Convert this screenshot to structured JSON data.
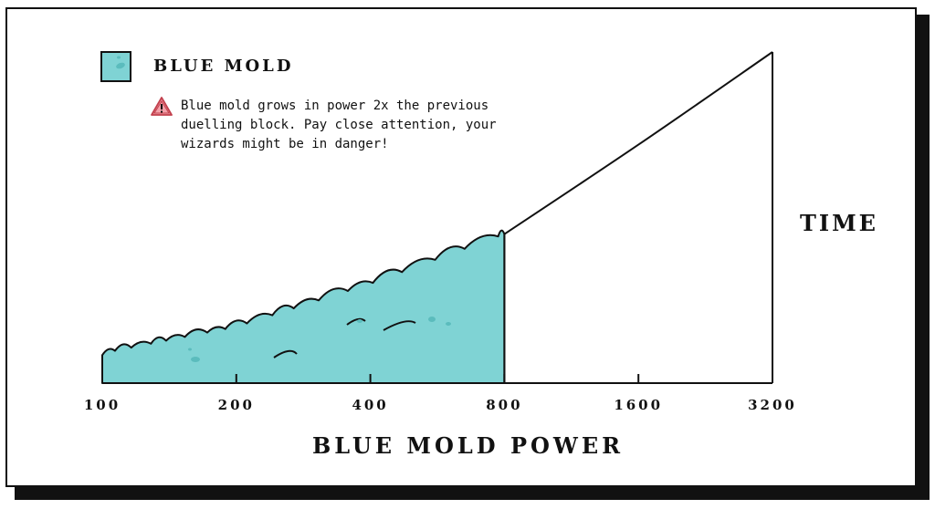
{
  "chart_data": {
    "type": "area",
    "title": "",
    "xlabel": "BLUE MOLD POWER",
    "ylabel": "TIME",
    "x_scale": "log2",
    "categories": [
      "100",
      "200",
      "400",
      "800",
      "1600",
      "3200"
    ],
    "x_ticks": [
      100,
      200,
      400,
      800,
      1600,
      3200
    ],
    "filled_until": 800,
    "series": [
      {
        "name": "BLUE MOLD",
        "color": "#7fd3d4",
        "x": [
          100,
          200,
          400,
          800,
          1600,
          3200
        ],
        "y": [
          0.09,
          0.17,
          0.3,
          0.45,
          0.72,
          1.0
        ]
      }
    ],
    "grid": false,
    "legend_position": "top-left"
  },
  "legend": {
    "label": "BLUE MOLD",
    "swatch_color": "#7fd3d4",
    "swatch_icon": "mold-swatch-icon"
  },
  "note": {
    "icon": "warning-icon",
    "text": "Blue mold grows in power 2x the previous duelling block. Pay close attention, your wizards might be in danger!"
  },
  "colors": {
    "fill": "#7fd3d4",
    "fill_dark": "#5bbcbd",
    "outline": "#111111",
    "warning": "#f3a1a9",
    "warning_stroke": "#c2404d"
  }
}
